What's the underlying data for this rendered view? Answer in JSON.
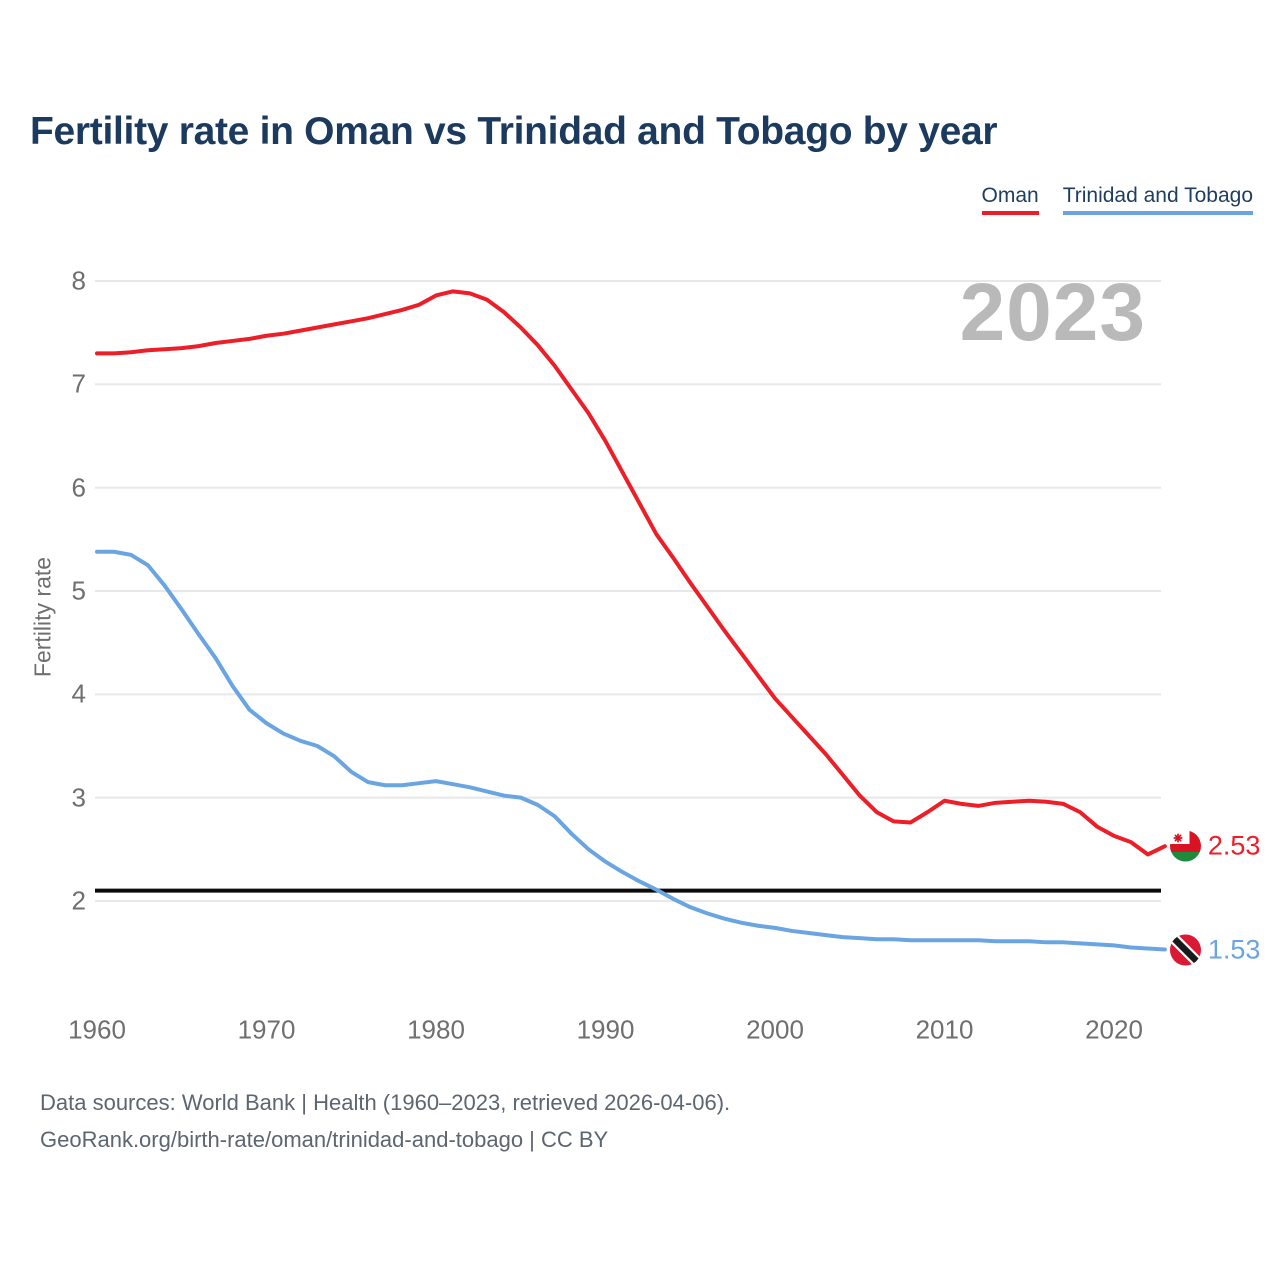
{
  "header": {
    "title": "Fertility rate in Oman vs Trinidad and Tobago by year"
  },
  "legend": [
    {
      "label": "Oman",
      "color": "#ec1e27"
    },
    {
      "label": "Trinidad and Tobago",
      "color": "#6aa5e2"
    }
  ],
  "watermark": "2023",
  "chart_data": {
    "type": "line",
    "title": "Fertility rate in Oman vs Trinidad and Tobago by year",
    "xlabel": "",
    "ylabel": "Fertility rate",
    "xlim": [
      1960,
      2023
    ],
    "ylim": [
      1.4,
      8.15
    ],
    "grid": "horizontal",
    "legend_position": "top-right",
    "x_ticks": [
      1960,
      1970,
      1980,
      1990,
      2000,
      2010,
      2020
    ],
    "y_ticks": [
      2,
      3,
      4,
      5,
      6,
      7,
      8
    ],
    "reference_line": {
      "value": 2.1,
      "color": "#0b0b0b"
    },
    "x": [
      1960,
      1961,
      1962,
      1963,
      1964,
      1965,
      1966,
      1967,
      1968,
      1969,
      1970,
      1971,
      1972,
      1973,
      1974,
      1975,
      1976,
      1977,
      1978,
      1979,
      1980,
      1981,
      1982,
      1983,
      1984,
      1985,
      1986,
      1987,
      1988,
      1989,
      1990,
      1991,
      1992,
      1993,
      1994,
      1995,
      1996,
      1997,
      1998,
      1999,
      2000,
      2001,
      2002,
      2003,
      2004,
      2005,
      2006,
      2007,
      2008,
      2009,
      2010,
      2011,
      2012,
      2013,
      2014,
      2015,
      2016,
      2017,
      2018,
      2019,
      2020,
      2021,
      2022,
      2023
    ],
    "series": [
      {
        "name": "Oman",
        "color": "#ec1e27",
        "end_label": "2.53",
        "flag": "oman-flag-icon",
        "values": [
          7.3,
          7.3,
          7.31,
          7.33,
          7.34,
          7.35,
          7.37,
          7.4,
          7.42,
          7.44,
          7.47,
          7.49,
          7.52,
          7.55,
          7.58,
          7.61,
          7.64,
          7.68,
          7.72,
          7.77,
          7.86,
          7.9,
          7.88,
          7.82,
          7.7,
          7.55,
          7.38,
          7.18,
          6.95,
          6.72,
          6.45,
          6.15,
          5.85,
          5.55,
          5.32,
          5.08,
          4.85,
          4.62,
          4.4,
          4.18,
          3.96,
          3.78,
          3.6,
          3.42,
          3.22,
          3.02,
          2.86,
          2.77,
          2.76,
          2.86,
          2.97,
          2.94,
          2.92,
          2.95,
          2.96,
          2.97,
          2.96,
          2.94,
          2.86,
          2.72,
          2.63,
          2.57,
          2.45,
          2.53
        ]
      },
      {
        "name": "Trinidad and Tobago",
        "color": "#6aa5e2",
        "end_label": "1.53",
        "flag": "trinidad-and-tobago-flag-icon",
        "values": [
          5.38,
          5.38,
          5.35,
          5.25,
          5.05,
          4.82,
          4.58,
          4.35,
          4.08,
          3.85,
          3.72,
          3.62,
          3.55,
          3.5,
          3.4,
          3.25,
          3.15,
          3.12,
          3.12,
          3.14,
          3.16,
          3.13,
          3.1,
          3.06,
          3.02,
          3.0,
          2.93,
          2.82,
          2.65,
          2.5,
          2.38,
          2.28,
          2.19,
          2.11,
          2.02,
          1.94,
          1.88,
          1.83,
          1.79,
          1.76,
          1.74,
          1.71,
          1.69,
          1.67,
          1.65,
          1.64,
          1.63,
          1.63,
          1.62,
          1.62,
          1.62,
          1.62,
          1.62,
          1.61,
          1.61,
          1.61,
          1.6,
          1.6,
          1.59,
          1.58,
          1.57,
          1.55,
          1.54,
          1.53
        ]
      }
    ]
  },
  "footer": {
    "line1": "Data sources: World Bank | Health (1960–2023, retrieved 2026-04-06).",
    "line2": "GeoRank.org/birth-rate/oman/trinidad-and-tobago | CC BY"
  }
}
